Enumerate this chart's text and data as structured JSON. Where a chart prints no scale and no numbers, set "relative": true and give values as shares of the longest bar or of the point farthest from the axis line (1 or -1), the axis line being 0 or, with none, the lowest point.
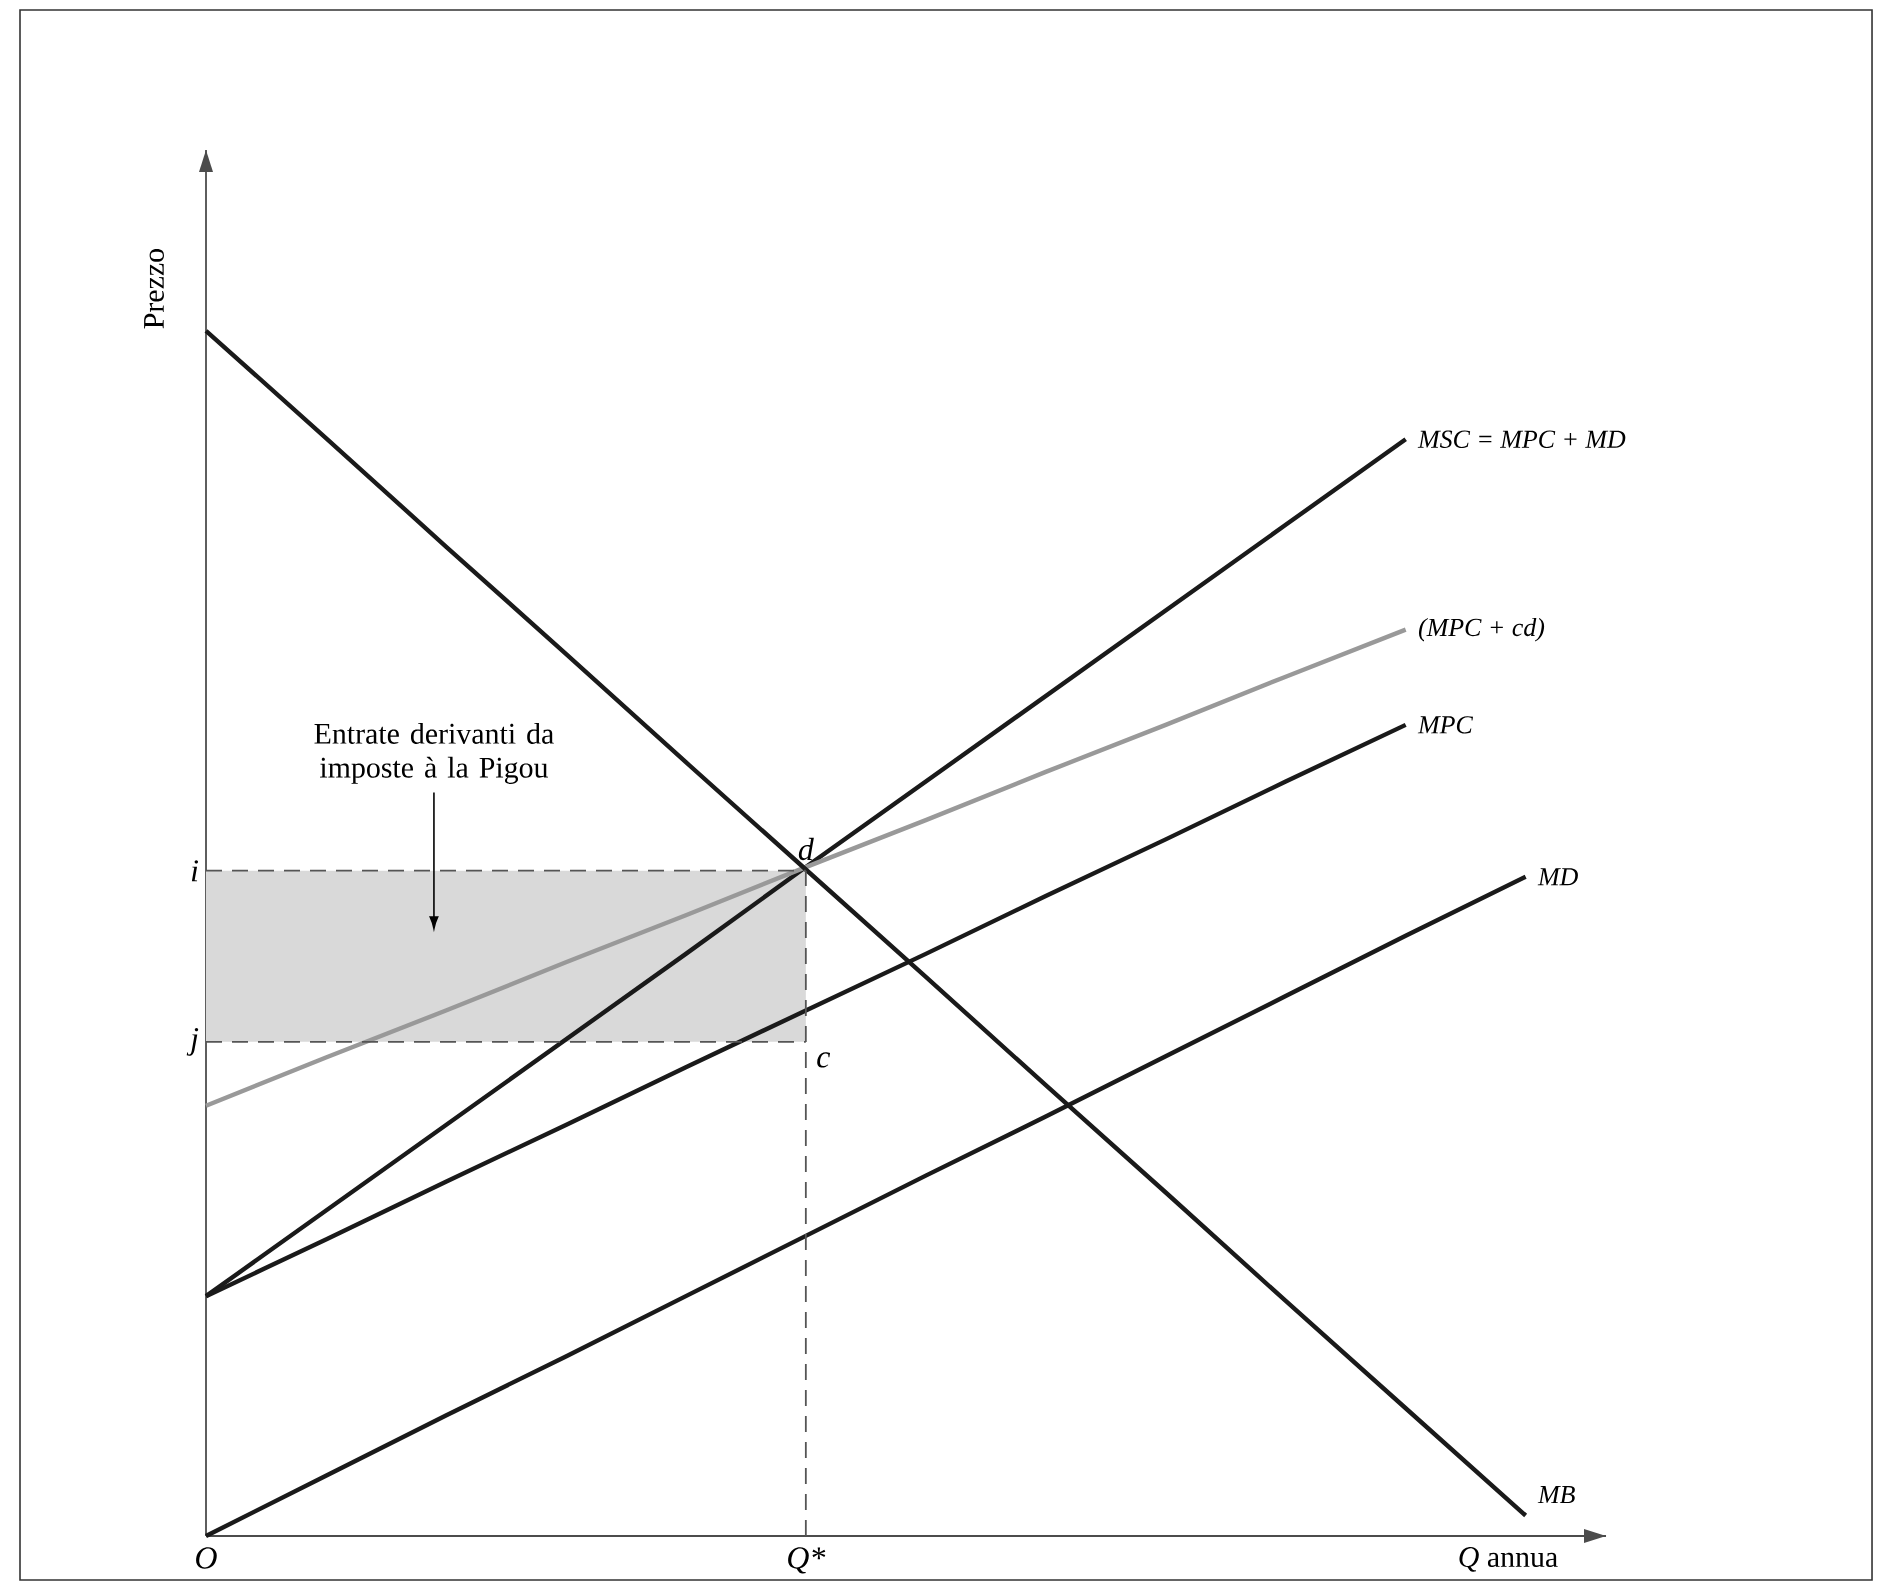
{
  "chart_data": {
    "type": "line",
    "relative": true,
    "ylabel": "Prezzo",
    "xlabel": "*Q* annua",
    "categories": [
      "O",
      null,
      null,
      null,
      null,
      "Q*",
      null,
      null,
      null,
      null,
      null,
      null
    ],
    "series": [
      {
        "name": "MSC = MPC + MD",
        "color": "#1a1a1a",
        "values": [
          0.199,
          0.27,
          0.341,
          0.412,
          0.483,
          0.555,
          0.626,
          0.697,
          0.768,
          0.839,
          0.91,
          null
        ]
      },
      {
        "name": "(MPC + cd)",
        "color": "#999999",
        "values": [
          0.357,
          0.397,
          0.436,
          0.476,
          0.515,
          0.555,
          0.594,
          0.634,
          0.673,
          0.713,
          0.752,
          null
        ]
      },
      {
        "name": "MPC",
        "color": "#1a1a1a",
        "values": [
          0.199,
          0.246,
          0.294,
          0.341,
          0.389,
          0.436,
          0.483,
          0.531,
          0.578,
          0.626,
          0.673,
          null
        ]
      },
      {
        "name": "MD",
        "color": "#1a1a1a",
        "values": [
          0,
          0.05,
          0.1,
          0.149,
          0.199,
          0.249,
          0.299,
          0.348,
          0.398,
          0.448,
          0.498,
          0.547
        ]
      },
      {
        "name": "MB",
        "color": "#1a1a1a",
        "values": [
          1.0,
          0.911,
          0.821,
          0.732,
          0.642,
          0.553,
          0.464,
          0.374,
          0.285,
          0.195,
          0.106,
          0.017
        ]
      }
    ],
    "ref_lines": [
      {
        "axis": "y",
        "value": 0.552,
        "label": "i",
        "line_style": "dashed",
        "color": "#555555"
      },
      {
        "axis": "y",
        "value": 0.41,
        "label": "j",
        "line_style": "dashed",
        "color": "#555555"
      },
      {
        "axis": "x",
        "value": "Q*",
        "line_style": "dashed",
        "color": "#555555"
      }
    ],
    "bands": [
      {
        "axis": "y",
        "from": 0.41,
        "to": 0.552,
        "label": "Entrate derivanti da imposte à la Pigou",
        "color": "#d9d9d9"
      }
    ],
    "annotations": [
      {
        "text": "d",
        "x": "Q*",
        "y": 0.552
      },
      {
        "text": "c",
        "x": "Q*",
        "y": 0.41
      }
    ],
    "marker": "none",
    "line_style": "solid"
  }
}
